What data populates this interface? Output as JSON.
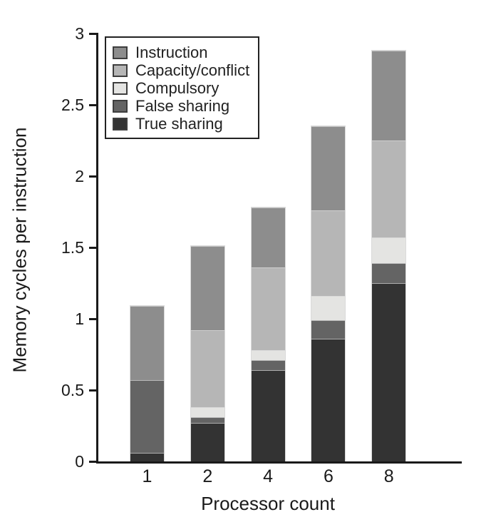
{
  "figure": {
    "background": "#ffffff",
    "text_color": "#1a1a1a"
  },
  "chart_data": {
    "type": "bar",
    "stacked": true,
    "title": "",
    "xlabel": "Processor count",
    "ylabel": "Memory cycles per instruction",
    "categories": [
      "1",
      "2",
      "4",
      "6",
      "8"
    ],
    "series": [
      {
        "name": "True sharing",
        "color": "#333333",
        "values": [
          0.06,
          0.27,
          0.64,
          0.86,
          1.25
        ]
      },
      {
        "name": "False sharing",
        "color": "#646464",
        "values": [
          0.51,
          0.04,
          0.07,
          0.13,
          0.14
        ]
      },
      {
        "name": "Compulsory",
        "color": "#e4e4e2",
        "values": [
          0.0,
          0.07,
          0.07,
          0.17,
          0.18
        ]
      },
      {
        "name": "Capacity/conflict",
        "color": "#b6b6b6",
        "values": [
          0.0,
          0.54,
          0.58,
          0.6,
          0.68
        ]
      },
      {
        "name": "Instruction",
        "color": "#8d8d8d",
        "values": [
          0.52,
          0.59,
          0.42,
          0.59,
          0.63
        ]
      }
    ],
    "totals": [
      1.09,
      1.51,
      1.78,
      2.35,
      2.88
    ],
    "legend_order": [
      "Instruction",
      "Capacity/conflict",
      "Compulsory",
      "False sharing",
      "True sharing"
    ],
    "legend_position": "top-left",
    "ylim": [
      0,
      3
    ],
    "yticks": [
      0,
      0.5,
      1,
      1.5,
      2,
      2.5,
      3
    ],
    "ytick_labels": [
      "0",
      "0.5",
      "1",
      "1.5",
      "2",
      "2.5",
      "3"
    ],
    "grid": false
  }
}
